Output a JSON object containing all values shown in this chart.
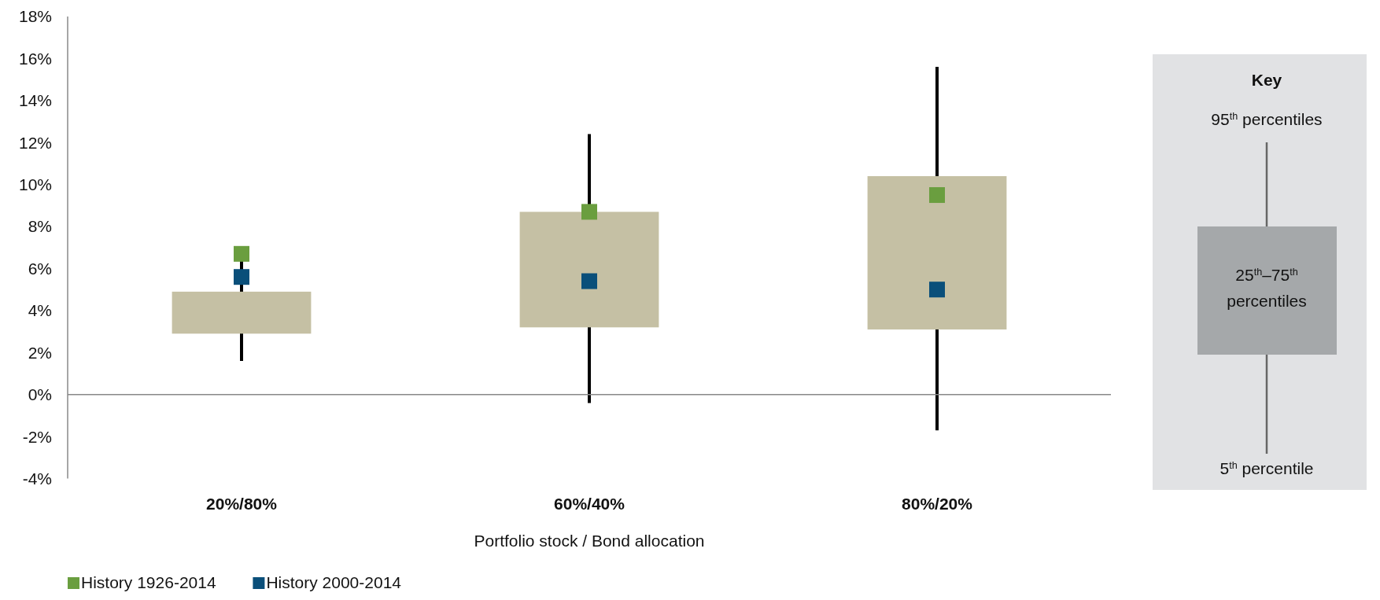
{
  "chart_data": {
    "type": "box",
    "xlabel": "Portfolio stock / Bond allocation",
    "categories": [
      "20%/80%",
      "60%/40%",
      "80%/20%"
    ],
    "color": "#c5c0a4",
    "boxes": [
      {
        "low": 1.6,
        "q1": 2.9,
        "q3": 4.9,
        "high": 6.5
      },
      {
        "low": -0.4,
        "q1": 3.2,
        "q3": 8.7,
        "high": 12.4
      },
      {
        "low": -1.7,
        "q1": 3.1,
        "q3": 10.4,
        "high": 15.6
      }
    ],
    "series": [
      {
        "type": "scatter",
        "name": "History 1926-2014",
        "color": "#6a9e3f",
        "x": [
          "20%/80%",
          "60%/40%",
          "80%/20%"
        ],
        "values": [
          6.7,
          8.7,
          9.5
        ]
      },
      {
        "type": "scatter",
        "name": "History 2000-2014",
        "color": "#0a4f7a",
        "x": [
          "20%/80%",
          "60%/40%",
          "80%/20%"
        ],
        "values": [
          5.6,
          5.4,
          5.0
        ]
      }
    ],
    "marker": "square",
    "legend": "bottom left",
    "grid": false,
    "ylim": [
      -4,
      18
    ],
    "yticks": [
      {
        "value": -4,
        "label": "-4%"
      },
      {
        "value": -2,
        "label": "-2%"
      },
      {
        "value": 0,
        "label": "0%"
      },
      {
        "value": 2,
        "label": "2%"
      },
      {
        "value": 4,
        "label": "4%"
      },
      {
        "value": 6,
        "label": "6%"
      },
      {
        "value": 8,
        "label": "8%"
      },
      {
        "value": 10,
        "label": "10%"
      },
      {
        "value": 12,
        "label": "12%"
      },
      {
        "value": 14,
        "label": "14%"
      },
      {
        "value": 16,
        "label": "16%"
      },
      {
        "value": 18,
        "label": "18%"
      }
    ],
    "annotations": [
      "Key",
      "95$^{th}$ percentiles",
      "25$^{th}$–75$^{th}$ percentiles",
      "5$^{th}$ percentile"
    ]
  }
}
